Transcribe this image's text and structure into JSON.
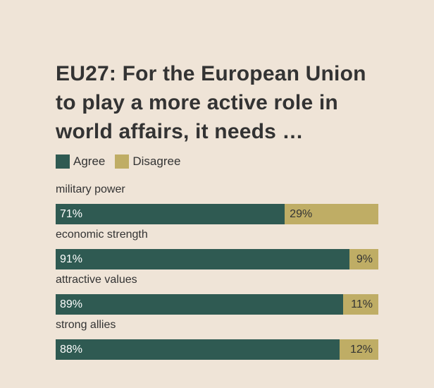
{
  "chart_data": {
    "type": "bar",
    "orientation": "horizontal",
    "stacked": true,
    "title": "EU27: For the European Union to play a more active role in world affairs, it needs …",
    "legend_position": "top-left",
    "categories": [
      "military power",
      "economic strength",
      "attractive values",
      "strong allies"
    ],
    "series": [
      {
        "name": "Agree",
        "color": "#2f5a52",
        "values": [
          71,
          91,
          89,
          88
        ],
        "labels": [
          "71%",
          "91%",
          "89%",
          "88%"
        ]
      },
      {
        "name": "Disagree",
        "color": "#bfad65",
        "values": [
          29,
          9,
          11,
          12
        ],
        "labels": [
          "29%",
          "9%",
          "11%",
          "12%"
        ]
      }
    ],
    "xlim": [
      0,
      100
    ],
    "grid": false
  }
}
